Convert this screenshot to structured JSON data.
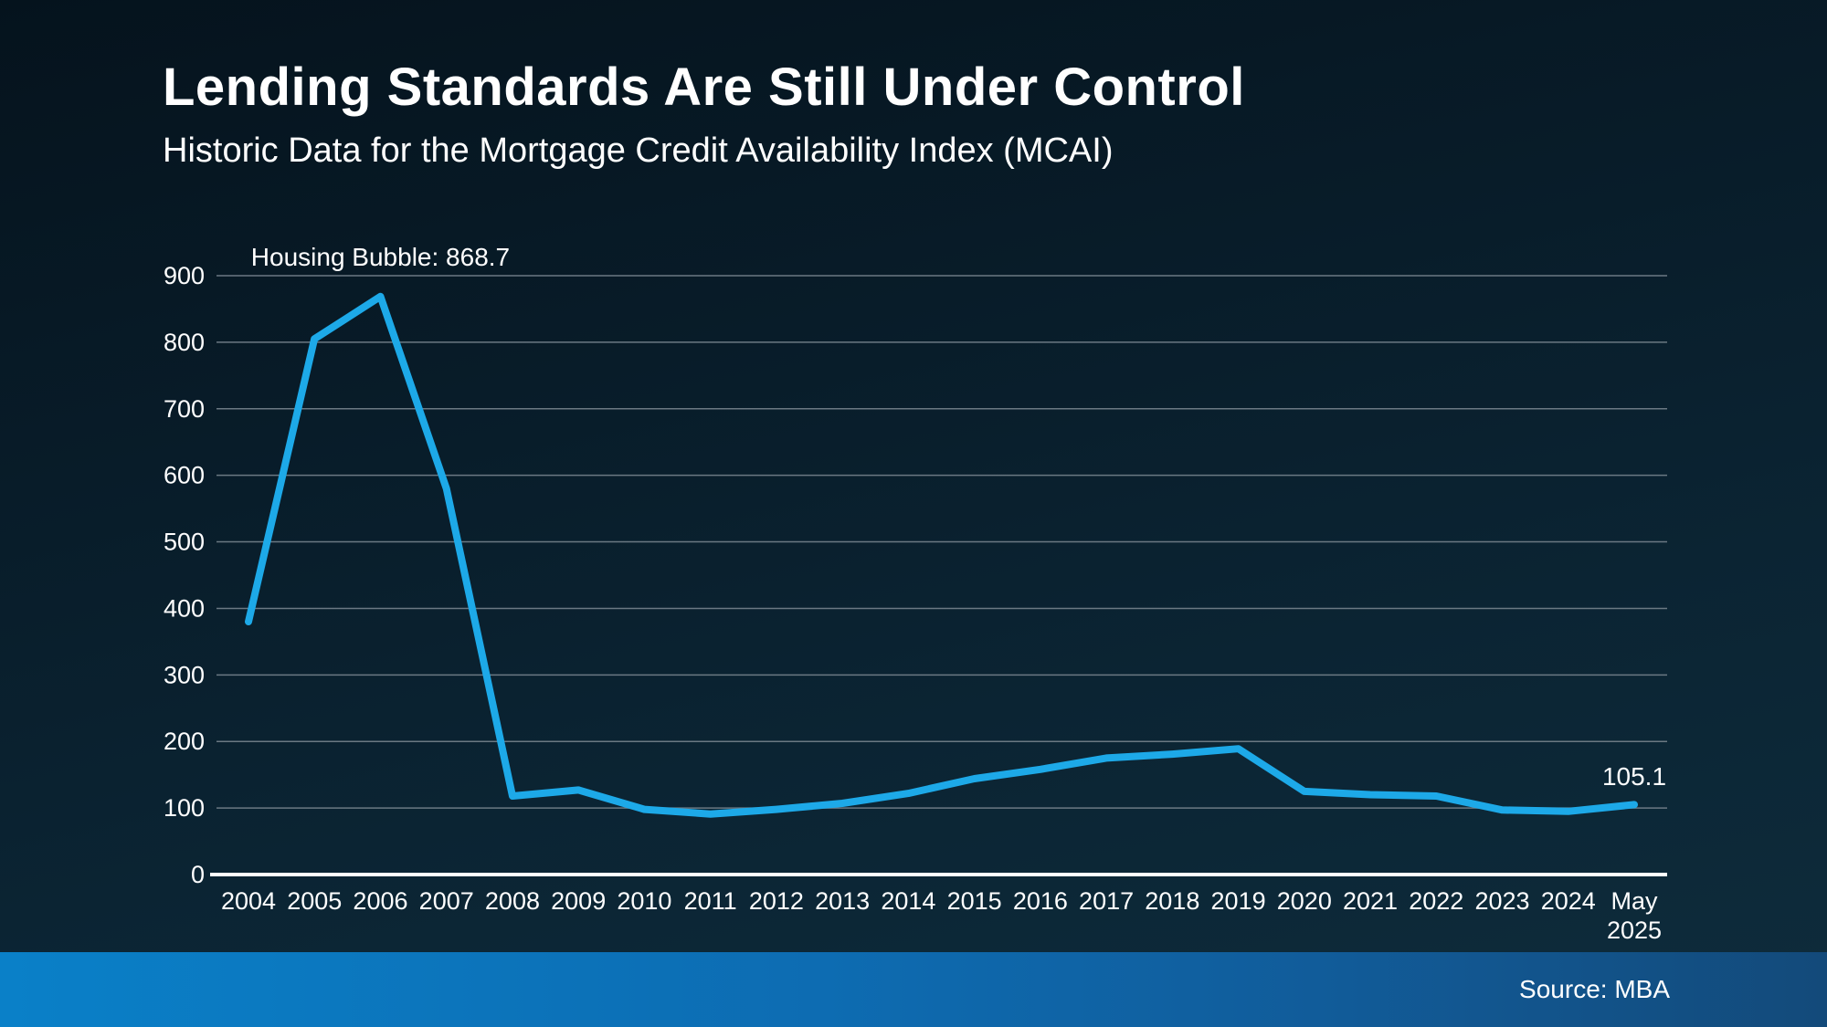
{
  "header": {
    "title": "Lending Standards Are Still Under Control",
    "subtitle": "Historic Data for the Mortgage Credit Availability Index (MCAI)"
  },
  "footer": {
    "source": "Source: MBA"
  },
  "chart_data": {
    "type": "line",
    "title": "Historic Data for the Mortgage Credit Availability Index (MCAI)",
    "categories": [
      "2004",
      "2005",
      "2006",
      "2007",
      "2008",
      "2009",
      "2010",
      "2011",
      "2012",
      "2013",
      "2014",
      "2015",
      "2016",
      "2017",
      "2018",
      "2019",
      "2020",
      "2021",
      "2022",
      "2023",
      "2024",
      "May 2025"
    ],
    "values": [
      380,
      805,
      868.7,
      580,
      118,
      127,
      98,
      91,
      98,
      107,
      122,
      144,
      158,
      175,
      181,
      189,
      125,
      120,
      118,
      97,
      95,
      105.1
    ],
    "xlabel": "",
    "ylabel": "",
    "ylim": [
      0,
      900
    ],
    "ytick_step": 100,
    "grid": true,
    "legend": "none",
    "annotations": {
      "peak_label": "Housing Bubble: 868.7",
      "peak_index": 2,
      "end_label": "105.1",
      "end_index": 21
    },
    "colors": {
      "line": "#1da9e8",
      "grid": "#6b7983",
      "axis": "#ffffff",
      "text": "#ffffff"
    }
  }
}
